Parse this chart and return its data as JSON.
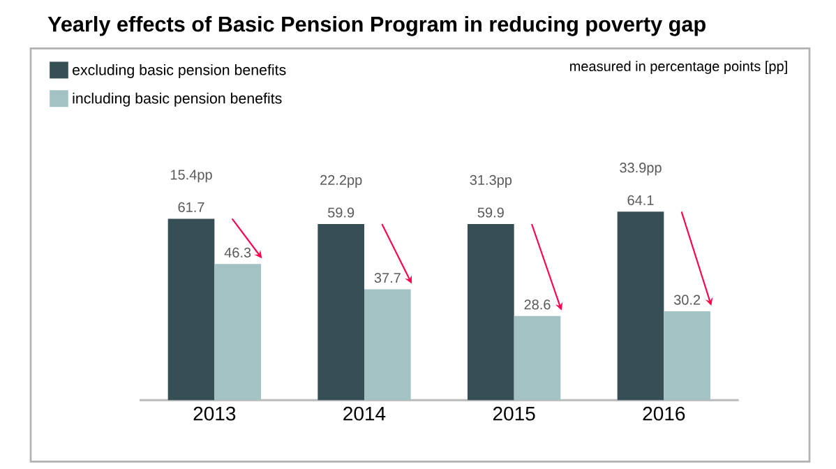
{
  "chart_data": {
    "type": "bar",
    "title": "Yearly effects of Basic Pension Program in reducing poverty gap",
    "categories": [
      "2013",
      "2014",
      "2015",
      "2016"
    ],
    "series": [
      {
        "name": "excluding basic pension benefits",
        "color": "#364f55",
        "values": [
          61.7,
          59.9,
          59.9,
          64.1
        ]
      },
      {
        "name": "including basic pension benefits",
        "color": "#a3c2c3",
        "values": [
          46.3,
          37.7,
          28.6,
          30.2
        ]
      }
    ],
    "tick_labels": "x",
    "data_labels": true,
    "legend": "top left",
    "grid": false,
    "annotations": [
      "measured in percentage points [pp]",
      "15.4pp",
      "22.2pp",
      "31.3pp",
      "33.9pp"
    ]
  }
}
